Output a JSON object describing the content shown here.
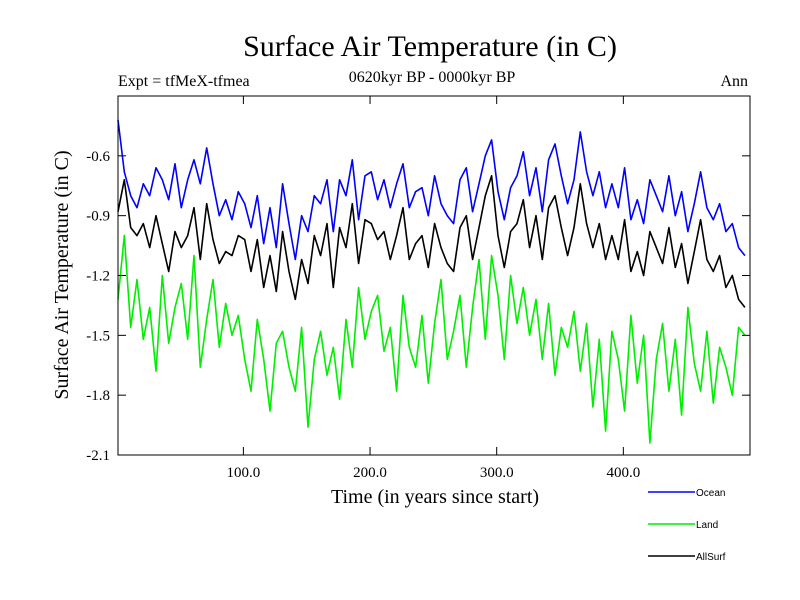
{
  "chart_data": {
    "type": "line",
    "title": "Surface Air Temperature (in C)",
    "subtitle_left": "Expt = tfMeX-tfmea",
    "subtitle_center": "0620kyr BP - 0000kyr BP",
    "subtitle_right": "Ann",
    "xlabel": "Time (in years since start)",
    "ylabel": "Surface Air Temperature (in C)",
    "xlim": [
      1,
      500
    ],
    "ylim": [
      -2.1,
      -0.3
    ],
    "xticks": [
      100,
      200,
      300,
      400
    ],
    "xtick_labels": [
      "100.0",
      "200.0",
      "300.0",
      "400.0"
    ],
    "yticks": [
      -2.1,
      -1.8,
      -1.5,
      -1.2,
      -0.9,
      -0.6
    ],
    "ytick_labels": [
      "-2.1",
      "-1.8",
      "-1.5",
      "-1.2",
      "-0.9",
      "-0.6"
    ],
    "grid": false,
    "legend_position": "bottom-right",
    "series": [
      {
        "name": "Ocean",
        "color": "#0000ff",
        "x_start": 1,
        "x_step": 5,
        "values": [
          -0.42,
          -0.68,
          -0.8,
          -0.86,
          -0.74,
          -0.8,
          -0.66,
          -0.72,
          -0.82,
          -0.64,
          -0.86,
          -0.72,
          -0.62,
          -0.74,
          -0.56,
          -0.74,
          -0.9,
          -0.82,
          -0.92,
          -0.78,
          -0.84,
          -0.96,
          -0.8,
          -1.04,
          -0.86,
          -1.06,
          -0.74,
          -0.94,
          -1.12,
          -0.9,
          -0.98,
          -0.8,
          -0.84,
          -0.72,
          -0.98,
          -0.72,
          -0.8,
          -0.62,
          -0.92,
          -0.7,
          -0.68,
          -0.82,
          -0.72,
          -0.86,
          -0.74,
          -0.64,
          -0.86,
          -0.78,
          -0.76,
          -0.9,
          -0.7,
          -0.84,
          -0.9,
          -0.94,
          -0.72,
          -0.66,
          -0.88,
          -0.74,
          -0.6,
          -0.52,
          -0.78,
          -0.92,
          -0.76,
          -0.7,
          -0.58,
          -0.8,
          -0.66,
          -0.88,
          -0.62,
          -0.54,
          -0.7,
          -0.84,
          -0.72,
          -0.48,
          -0.68,
          -0.8,
          -0.68,
          -0.86,
          -0.74,
          -0.86,
          -0.66,
          -0.92,
          -0.82,
          -0.94,
          -0.72,
          -0.8,
          -0.88,
          -0.7,
          -0.9,
          -0.78,
          -0.98,
          -0.84,
          -0.68,
          -0.86,
          -0.92,
          -0.84,
          -0.98,
          -0.94,
          -1.06,
          -1.1
        ]
      },
      {
        "name": "Land",
        "color": "#00ee00",
        "x_start": 1,
        "x_step": 5,
        "values": [
          -1.32,
          -1.0,
          -1.46,
          -1.22,
          -1.52,
          -1.36,
          -1.68,
          -1.2,
          -1.54,
          -1.36,
          -1.24,
          -1.52,
          -1.1,
          -1.66,
          -1.42,
          -1.22,
          -1.56,
          -1.34,
          -1.5,
          -1.4,
          -1.62,
          -1.78,
          -1.42,
          -1.62,
          -1.88,
          -1.54,
          -1.48,
          -1.66,
          -1.78,
          -1.46,
          -1.96,
          -1.62,
          -1.48,
          -1.7,
          -1.56,
          -1.82,
          -1.42,
          -1.66,
          -1.26,
          -1.52,
          -1.38,
          -1.3,
          -1.58,
          -1.46,
          -1.78,
          -1.3,
          -1.56,
          -1.66,
          -1.4,
          -1.74,
          -1.44,
          -1.22,
          -1.62,
          -1.48,
          -1.3,
          -1.66,
          -1.36,
          -1.12,
          -1.52,
          -1.1,
          -1.3,
          -1.62,
          -1.2,
          -1.44,
          -1.26,
          -1.5,
          -1.32,
          -1.62,
          -1.34,
          -1.7,
          -1.46,
          -1.56,
          -1.38,
          -1.68,
          -1.44,
          -1.86,
          -1.52,
          -1.98,
          -1.48,
          -1.62,
          -1.88,
          -1.4,
          -1.74,
          -1.5,
          -2.04,
          -1.62,
          -1.44,
          -1.78,
          -1.52,
          -1.9,
          -1.36,
          -1.64,
          -1.78,
          -1.48,
          -1.84,
          -1.56,
          -1.66,
          -1.8,
          -1.46,
          -1.5
        ]
      },
      {
        "name": "AllSurf",
        "color": "#000000",
        "x_start": 1,
        "x_step": 5,
        "values": [
          -0.88,
          -0.72,
          -0.96,
          -1.0,
          -0.94,
          -1.06,
          -0.9,
          -1.04,
          -1.18,
          -0.98,
          -1.06,
          -1.0,
          -0.86,
          -1.12,
          -0.84,
          -1.02,
          -1.14,
          -1.08,
          -1.1,
          -1.0,
          -1.02,
          -1.18,
          -1.02,
          -1.26,
          -1.1,
          -1.28,
          -0.98,
          -1.18,
          -1.32,
          -1.12,
          -1.24,
          -1.0,
          -1.1,
          -0.94,
          -1.26,
          -0.96,
          -1.06,
          -0.84,
          -1.14,
          -0.92,
          -0.94,
          -1.02,
          -0.98,
          -1.12,
          -1.0,
          -0.86,
          -1.12,
          -1.04,
          -1.0,
          -1.16,
          -0.94,
          -1.06,
          -1.14,
          -1.18,
          -0.96,
          -0.9,
          -1.12,
          -0.96,
          -0.8,
          -0.7,
          -1.0,
          -1.16,
          -0.98,
          -0.94,
          -0.82,
          -1.06,
          -0.9,
          -1.12,
          -0.86,
          -0.8,
          -0.96,
          -1.1,
          -0.96,
          -0.74,
          -0.94,
          -1.06,
          -0.94,
          -1.12,
          -1.0,
          -1.12,
          -0.92,
          -1.18,
          -1.08,
          -1.2,
          -0.98,
          -1.06,
          -1.14,
          -0.96,
          -1.16,
          -1.04,
          -1.24,
          -1.08,
          -0.92,
          -1.12,
          -1.18,
          -1.1,
          -1.26,
          -1.2,
          -1.32,
          -1.36
        ]
      }
    ]
  }
}
